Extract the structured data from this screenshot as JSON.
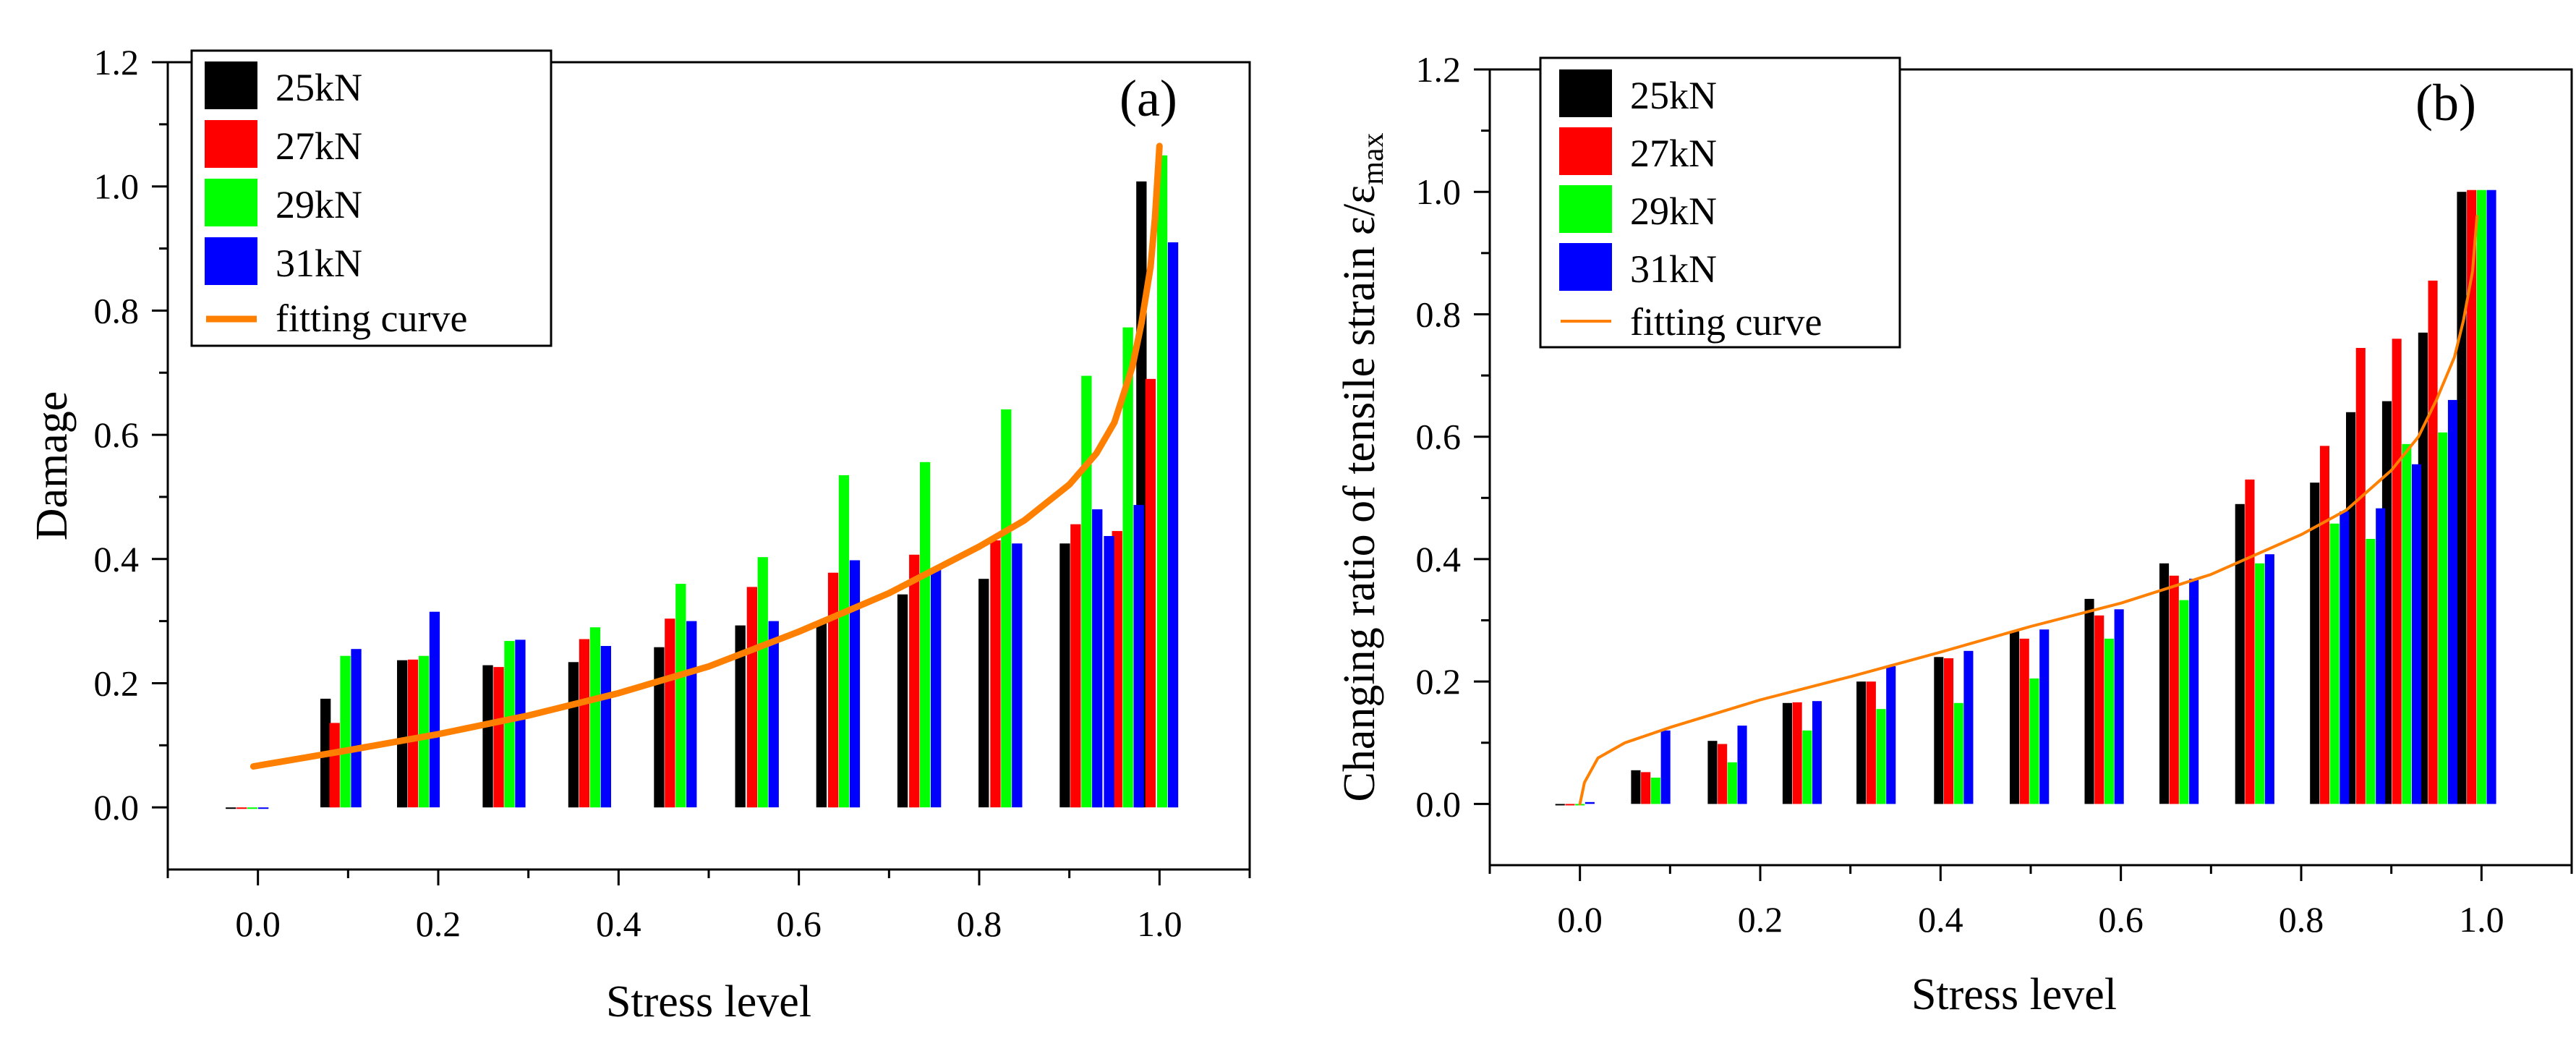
{
  "chart_data": [
    {
      "id": "a",
      "type": "bar",
      "panel_label": "(a)",
      "xlabel": "Stress level",
      "ylabel": "Damage",
      "ylabel_sub": "",
      "xlim": [
        -0.1,
        1.1
      ],
      "ylim": [
        -0.1,
        1.2
      ],
      "xticks": [
        0.0,
        0.2,
        0.4,
        0.6,
        0.8,
        1.0
      ],
      "xtick_labels": [
        "0.0",
        "0.2",
        "0.4",
        "0.6",
        "0.8",
        "1.0"
      ],
      "yticks": [
        0.0,
        0.2,
        0.4,
        0.6,
        0.8,
        1.0,
        1.2
      ],
      "ytick_labels": [
        "0.0",
        "0.2",
        "0.4",
        "0.6",
        "0.8",
        "1.0",
        "1.2"
      ],
      "bar_width": 0.0115,
      "series": [
        {
          "name": "25kN",
          "color": "#000000",
          "x": [
            -0.03,
            0.075,
            0.16,
            0.255,
            0.35,
            0.445,
            0.535,
            0.625,
            0.715,
            0.805,
            0.895,
            0.98
          ],
          "values": [
            0.0,
            0.175,
            0.237,
            0.229,
            0.234,
            0.258,
            0.293,
            0.298,
            0.343,
            0.368,
            0.425,
            1.008
          ]
        },
        {
          "name": "27kN",
          "color": "#ff0000",
          "x": [
            -0.018,
            0.085,
            0.172,
            0.267,
            0.362,
            0.457,
            0.548,
            0.638,
            0.728,
            0.818,
            0.907,
            0.99
          ],
          "values": [
            0.0,
            0.136,
            0.238,
            0.226,
            0.271,
            0.304,
            0.355,
            0.378,
            0.407,
            0.43,
            0.456,
            0.69
          ]
        },
        {
          "name": "29kN",
          "color": "#00ff00",
          "x": [
            -0.006,
            0.097,
            0.184,
            0.279,
            0.374,
            0.469,
            0.56,
            0.65,
            0.74,
            0.83,
            0.919,
            1.003
          ],
          "values": [
            0.0,
            0.244,
            0.244,
            0.268,
            0.29,
            0.36,
            0.403,
            0.535,
            0.556,
            0.641,
            0.695,
            1.05
          ]
        },
        {
          "name": "31kN",
          "color": "#0000ff",
          "x": [
            0.006,
            0.109,
            0.196,
            0.291,
            0.386,
            0.481,
            0.572,
            0.662,
            0.752,
            0.842,
            0.931,
            1.015
          ],
          "values": [
            0.0,
            0.255,
            0.315,
            0.27,
            0.26,
            0.3,
            0.3,
            0.398,
            0.385,
            0.425,
            0.48,
            0.91
          ]
        }
      ],
      "extra_bars": [
        {
          "x": 0.953,
          "value": 0.445,
          "color": "#ff0000"
        },
        {
          "x": 0.965,
          "value": 0.773,
          "color": "#00ff00"
        },
        {
          "x": 0.944,
          "value": 0.437,
          "color": "#0000ff"
        },
        {
          "x": 0.977,
          "value": 0.487,
          "color": "#0000ff"
        }
      ],
      "fit": {
        "name": "fitting curve",
        "color": "#ff8000",
        "x": [
          -0.005,
          0.1,
          0.2,
          0.3,
          0.4,
          0.5,
          0.6,
          0.7,
          0.8,
          0.85,
          0.9,
          0.93,
          0.95,
          0.97,
          0.98,
          0.99,
          0.995,
          1.0
        ],
        "y": [
          0.066,
          0.092,
          0.118,
          0.148,
          0.184,
          0.227,
          0.283,
          0.345,
          0.42,
          0.462,
          0.52,
          0.57,
          0.62,
          0.71,
          0.78,
          0.87,
          0.95,
          1.065
        ]
      },
      "legend_entries": [
        "25kN",
        "27kN",
        "29kN",
        "31kN",
        "fitting curve"
      ]
    },
    {
      "id": "b",
      "type": "bar",
      "panel_label": "(b)",
      "xlabel": "Stress level",
      "ylabel": "Changing ratio of tensile strain  ε/ε",
      "ylabel_sub": "max",
      "xlim": [
        -0.1,
        1.1
      ],
      "ylim": [
        -0.1,
        1.2
      ],
      "xticks": [
        0.0,
        0.2,
        0.4,
        0.6,
        0.8,
        1.0
      ],
      "xtick_labels": [
        "0.0",
        "0.2",
        "0.4",
        "0.6",
        "0.8",
        "1.0"
      ],
      "yticks": [
        0.0,
        0.2,
        0.4,
        0.6,
        0.8,
        1.0,
        1.2
      ],
      "ytick_labels": [
        "0.0",
        "0.2",
        "0.4",
        "0.6",
        "0.8",
        "1.0",
        "1.2"
      ],
      "bar_width": 0.0105,
      "series": [
        {
          "name": "25kN",
          "color": "#000000",
          "x": [
            -0.022,
            0.062,
            0.147,
            0.23,
            0.312,
            0.398,
            0.482,
            0.565,
            0.648,
            0.732,
            0.815,
            0.855,
            0.895,
            0.935,
            0.978
          ],
          "values": [
            0.0,
            0.055,
            0.103,
            0.165,
            0.2,
            0.24,
            0.282,
            0.335,
            0.393,
            0.49,
            0.525,
            0.64,
            0.658,
            0.77,
            1.0
          ]
        },
        {
          "name": "27kN",
          "color": "#ff0000",
          "x": [
            -0.011,
            0.073,
            0.158,
            0.241,
            0.323,
            0.409,
            0.493,
            0.576,
            0.659,
            0.743,
            0.826,
            0.866,
            0.906,
            0.946,
            0.989
          ],
          "values": [
            0.0,
            0.052,
            0.098,
            0.166,
            0.2,
            0.238,
            0.27,
            0.308,
            0.373,
            0.53,
            0.585,
            0.745,
            0.76,
            0.855,
            1.003
          ]
        },
        {
          "name": "29kN",
          "color": "#00ff00",
          "x": [
            0.0,
            0.084,
            0.169,
            0.252,
            0.334,
            0.42,
            0.504,
            0.587,
            0.67,
            0.754,
            0.837,
            0.877,
            0.917,
            0.957,
            1.0
          ],
          "values": [
            0.0,
            0.043,
            0.068,
            0.12,
            0.155,
            0.165,
            0.205,
            0.27,
            0.333,
            0.393,
            0.458,
            0.433,
            0.588,
            0.607,
            1.003
          ]
        },
        {
          "name": "31kN",
          "color": "#0000ff",
          "x": [
            0.011,
            0.095,
            0.18,
            0.263,
            0.345,
            0.431,
            0.515,
            0.598,
            0.681,
            0.765,
            0.848,
            0.888,
            0.928,
            0.968,
            1.011
          ],
          "values": [
            0.003,
            0.12,
            0.128,
            0.168,
            0.225,
            0.25,
            0.285,
            0.318,
            0.368,
            0.408,
            0.478,
            0.483,
            0.555,
            0.66,
            1.003
          ]
        }
      ],
      "extra_bars": [],
      "fit": {
        "name": "fitting curve",
        "color": "#ff8000",
        "x": [
          0.0,
          0.005,
          0.02,
          0.05,
          0.1,
          0.2,
          0.3,
          0.4,
          0.5,
          0.6,
          0.7,
          0.8,
          0.85,
          0.9,
          0.93,
          0.95,
          0.97,
          0.98,
          0.99,
          0.995
        ],
        "y": [
          0.0,
          0.035,
          0.075,
          0.1,
          0.125,
          0.17,
          0.208,
          0.248,
          0.29,
          0.328,
          0.375,
          0.44,
          0.48,
          0.545,
          0.6,
          0.66,
          0.73,
          0.79,
          0.87,
          0.96
        ]
      },
      "legend_entries": [
        "25kN",
        "27kN",
        "29kN",
        "31kN",
        "fitting curve"
      ]
    }
  ]
}
